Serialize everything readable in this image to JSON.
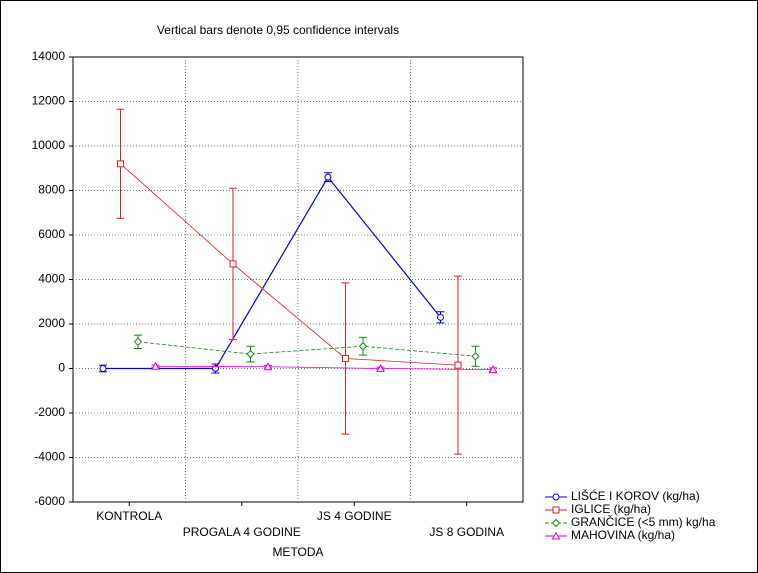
{
  "chart_data": {
    "type": "line",
    "title": "Vertical bars denote 0,95 confidence intervals",
    "xlabel": "METODA",
    "categories": [
      "KONTROLA",
      "PROGALA 4 GODINE",
      "JS 4 GODINE",
      "JS 8 GODINA"
    ],
    "series": [
      {
        "name": "LIŠĆE I KOROV (kg/ha)",
        "color": "#0000cc",
        "marker": "circle",
        "dash": false,
        "values": [
          0,
          0,
          8600,
          2300
        ],
        "errors": [
          150,
          200,
          200,
          250
        ]
      },
      {
        "name": "IGLICE (kg/ha)",
        "color": "#dd2222",
        "marker": "square",
        "dash": false,
        "values": [
          9200,
          4700,
          450,
          150
        ],
        "errors": [
          2450,
          3400,
          3400,
          4000
        ]
      },
      {
        "name": "GRANČICE (<5 mm) kg/ha",
        "color": "#118811",
        "marker": "diamond",
        "dash": true,
        "values": [
          1200,
          650,
          1000,
          550
        ],
        "errors": [
          300,
          350,
          400,
          450
        ]
      },
      {
        "name": "MAHOVINA (kg/ha)",
        "color": "#dd00dd",
        "marker": "triangle",
        "dash": false,
        "values": [
          100,
          80,
          0,
          -50
        ],
        "errors": [
          50,
          60,
          60,
          80
        ]
      }
    ],
    "ylim": [
      -6000,
      14000
    ],
    "yticks": [
      -6000,
      -4000,
      -2000,
      0,
      2000,
      4000,
      6000,
      8000,
      10000,
      12000,
      14000
    ],
    "grid": true
  }
}
